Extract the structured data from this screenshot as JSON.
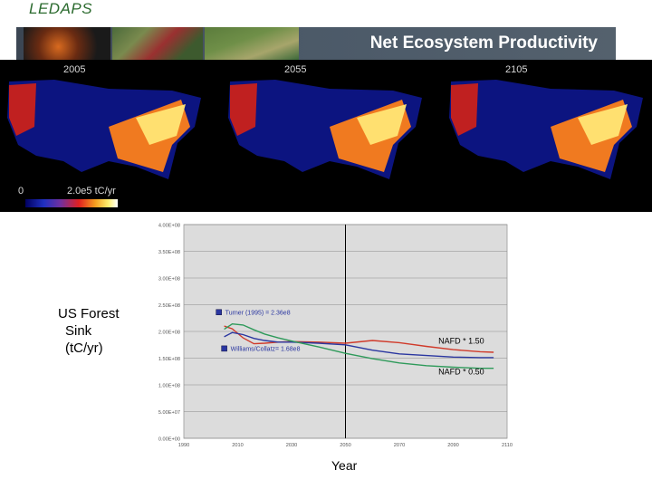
{
  "header": {
    "logo_text": "LEDAPS",
    "title": "Net Ecosystem Productivity"
  },
  "maps": {
    "years": [
      "2005",
      "2055",
      "2105"
    ],
    "colorbar": {
      "min_label": "0",
      "max_label": "2.0e5 tC/yr"
    }
  },
  "side_label": {
    "line1": "US Forest",
    "line2": "Sink",
    "line3": "(tC/yr)"
  },
  "x_axis_title": "Year",
  "chart_data": {
    "type": "line",
    "ylabel": "",
    "xlabel": "",
    "xlim": [
      1990,
      2110
    ],
    "ylim": [
      0,
      400000000
    ],
    "xticks": [
      1990,
      2010,
      2030,
      2050,
      2070,
      2090,
      2110
    ],
    "yticks": [
      0,
      50000000,
      100000000,
      150000000,
      200000000,
      250000000,
      300000000,
      350000000,
      400000000
    ],
    "ytick_labels": [
      "0.00E+00",
      "5.00E+07",
      "1.00E+08",
      "1.50E+08",
      "2.00E+08",
      "2.50E+08",
      "3.00E+08",
      "3.50E+08",
      "4.00E+08"
    ],
    "grid": true,
    "background": "#dcdcdc",
    "vline_x": 2050,
    "series": [
      {
        "color": "#d03a2a",
        "x": [
          2005,
          2008,
          2012,
          2016,
          2020,
          2025,
          2030,
          2040,
          2050,
          2060,
          2070,
          2080,
          2090,
          2100,
          2105
        ],
        "y": [
          210000000,
          205000000,
          188000000,
          177000000,
          178000000,
          180000000,
          181000000,
          180000000,
          178000000,
          183000000,
          179000000,
          172000000,
          166000000,
          162000000,
          161000000
        ]
      },
      {
        "color": "#2a36a0",
        "x": [
          2005,
          2008,
          2012,
          2016,
          2020,
          2025,
          2030,
          2040,
          2050,
          2060,
          2070,
          2080,
          2090,
          2100,
          2105
        ],
        "y": [
          190000000,
          198000000,
          194000000,
          187000000,
          183000000,
          180000000,
          180000000,
          178000000,
          175000000,
          165000000,
          158000000,
          155000000,
          152000000,
          151000000,
          151000000
        ]
      },
      {
        "color": "#2e9a5a",
        "x": [
          2005,
          2008,
          2012,
          2016,
          2020,
          2025,
          2030,
          2040,
          2050,
          2060,
          2070,
          2080,
          2090,
          2100,
          2105
        ],
        "y": [
          204000000,
          214000000,
          212000000,
          203000000,
          195000000,
          188000000,
          182000000,
          171000000,
          159000000,
          149000000,
          141000000,
          136000000,
          133000000,
          131000000,
          131000000
        ]
      }
    ],
    "markers": [
      {
        "x": 2003,
        "y": 236000000,
        "label": "Turner (1995) = 2.36e8",
        "label_color": "#2a36a0"
      },
      {
        "x": 2005,
        "y": 168000000,
        "label": "Williams/Collatz= 1.68e8",
        "label_color": "#2a36a0"
      }
    ],
    "annotations": [
      {
        "text": "NAFD * 1.50",
        "x": 2093,
        "y": 182000000
      },
      {
        "text": "NAFD * 0.50",
        "x": 2093,
        "y": 125000000
      }
    ]
  }
}
